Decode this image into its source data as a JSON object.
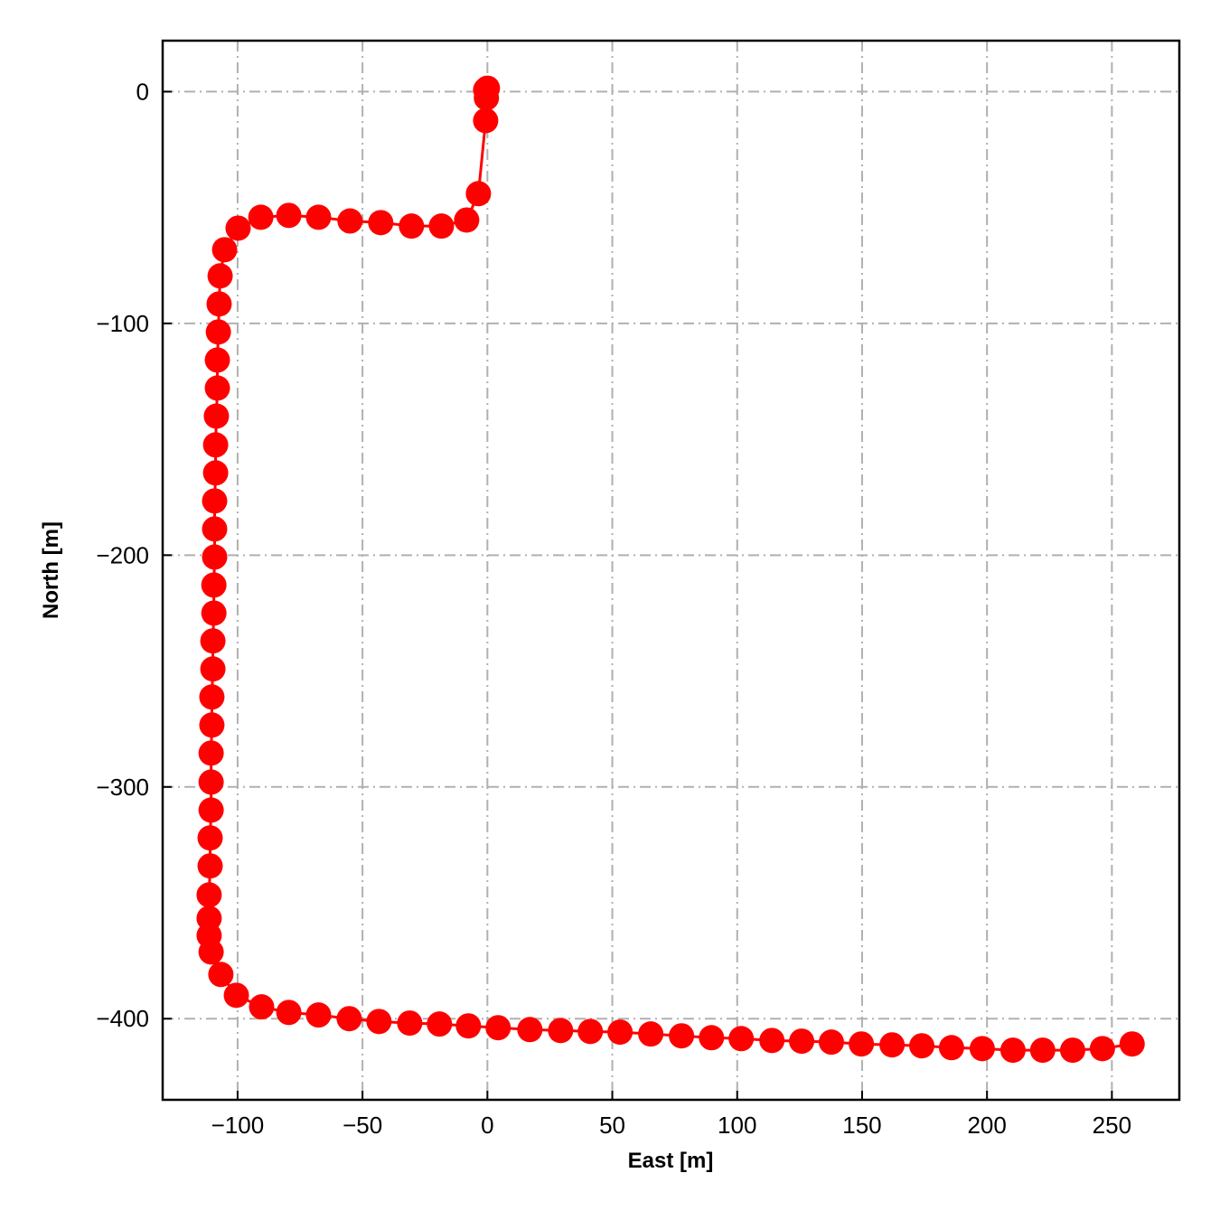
{
  "chart_data": {
    "type": "line",
    "x_label": "East [m]",
    "y_label": "North [m]",
    "x": [
      -0.7,
      0,
      -0.4,
      -0.7,
      -3.6,
      -8.3,
      -18.4,
      -30.4,
      -42.7,
      -55,
      -67.6,
      -79.5,
      -90.7,
      -99.8,
      -105.2,
      -107,
      -107.4,
      -107.7,
      -108.1,
      -108.1,
      -108.5,
      -108.8,
      -108.8,
      -109.2,
      -109.2,
      -109.2,
      -109.5,
      -109.5,
      -109.9,
      -109.9,
      -110.3,
      -110.3,
      -110.6,
      -110.6,
      -110.6,
      -111,
      -111,
      -111.4,
      -111.4,
      -111.4,
      -110.6,
      -106.7,
      -100.5,
      -90.4,
      -79.5,
      -67.6,
      -55.3,
      -43.4,
      -31.1,
      -19.2,
      -7.6,
      4.3,
      17,
      29.3,
      41.2,
      53.1,
      65.4,
      77.7,
      89.7,
      101.6,
      113.9,
      125.8,
      137.7,
      149.7,
      162,
      173.9,
      185.8,
      198.1,
      210.4,
      222.3,
      234.3,
      246.2,
      258.1
    ],
    "series": [
      {
        "color": "#ff0000",
        "values": [
          0.8,
          1.5,
          -2.7,
          -12.5,
          -44,
          -55.4,
          -58,
          -58,
          -56.5,
          -55.8,
          -54.2,
          -53.4,
          -54.2,
          -58.9,
          -68.2,
          -79.5,
          -91.6,
          -103.7,
          -115.8,
          -127.9,
          -140,
          -152.4,
          -164.5,
          -176.6,
          -188.7,
          -200.8,
          -212.9,
          -225,
          -237,
          -249.1,
          -261.2,
          -273.3,
          -285.4,
          -297.9,
          -310,
          -322,
          -334.1,
          -346.6,
          -356.7,
          -364.1,
          -371.2,
          -380.9,
          -389.9,
          -394.9,
          -397.3,
          -398.4,
          -400,
          -401.2,
          -401.9,
          -402.3,
          -403.1,
          -403.9,
          -404.7,
          -405.1,
          -405.5,
          -405.8,
          -406.6,
          -407.4,
          -408.2,
          -408.6,
          -409.4,
          -409.7,
          -410.1,
          -410.9,
          -411.3,
          -411.7,
          -412.5,
          -412.9,
          -413.6,
          -413.6,
          -413.6,
          -412.9,
          -410.9
        ]
      }
    ],
    "xlim": [
      -130,
      277
    ],
    "ylim": [
      -435,
      22
    ],
    "xticks": [
      {
        "value": -100,
        "label": "−100"
      },
      {
        "value": -50,
        "label": "−50"
      },
      0,
      50,
      100,
      150,
      200,
      250
    ],
    "yticks": [
      0,
      {
        "value": -100,
        "label": "−100"
      },
      {
        "value": -200,
        "label": "−200"
      },
      {
        "value": -300,
        "label": "−300"
      },
      {
        "value": -400,
        "label": "−400"
      }
    ],
    "grid": true
  }
}
